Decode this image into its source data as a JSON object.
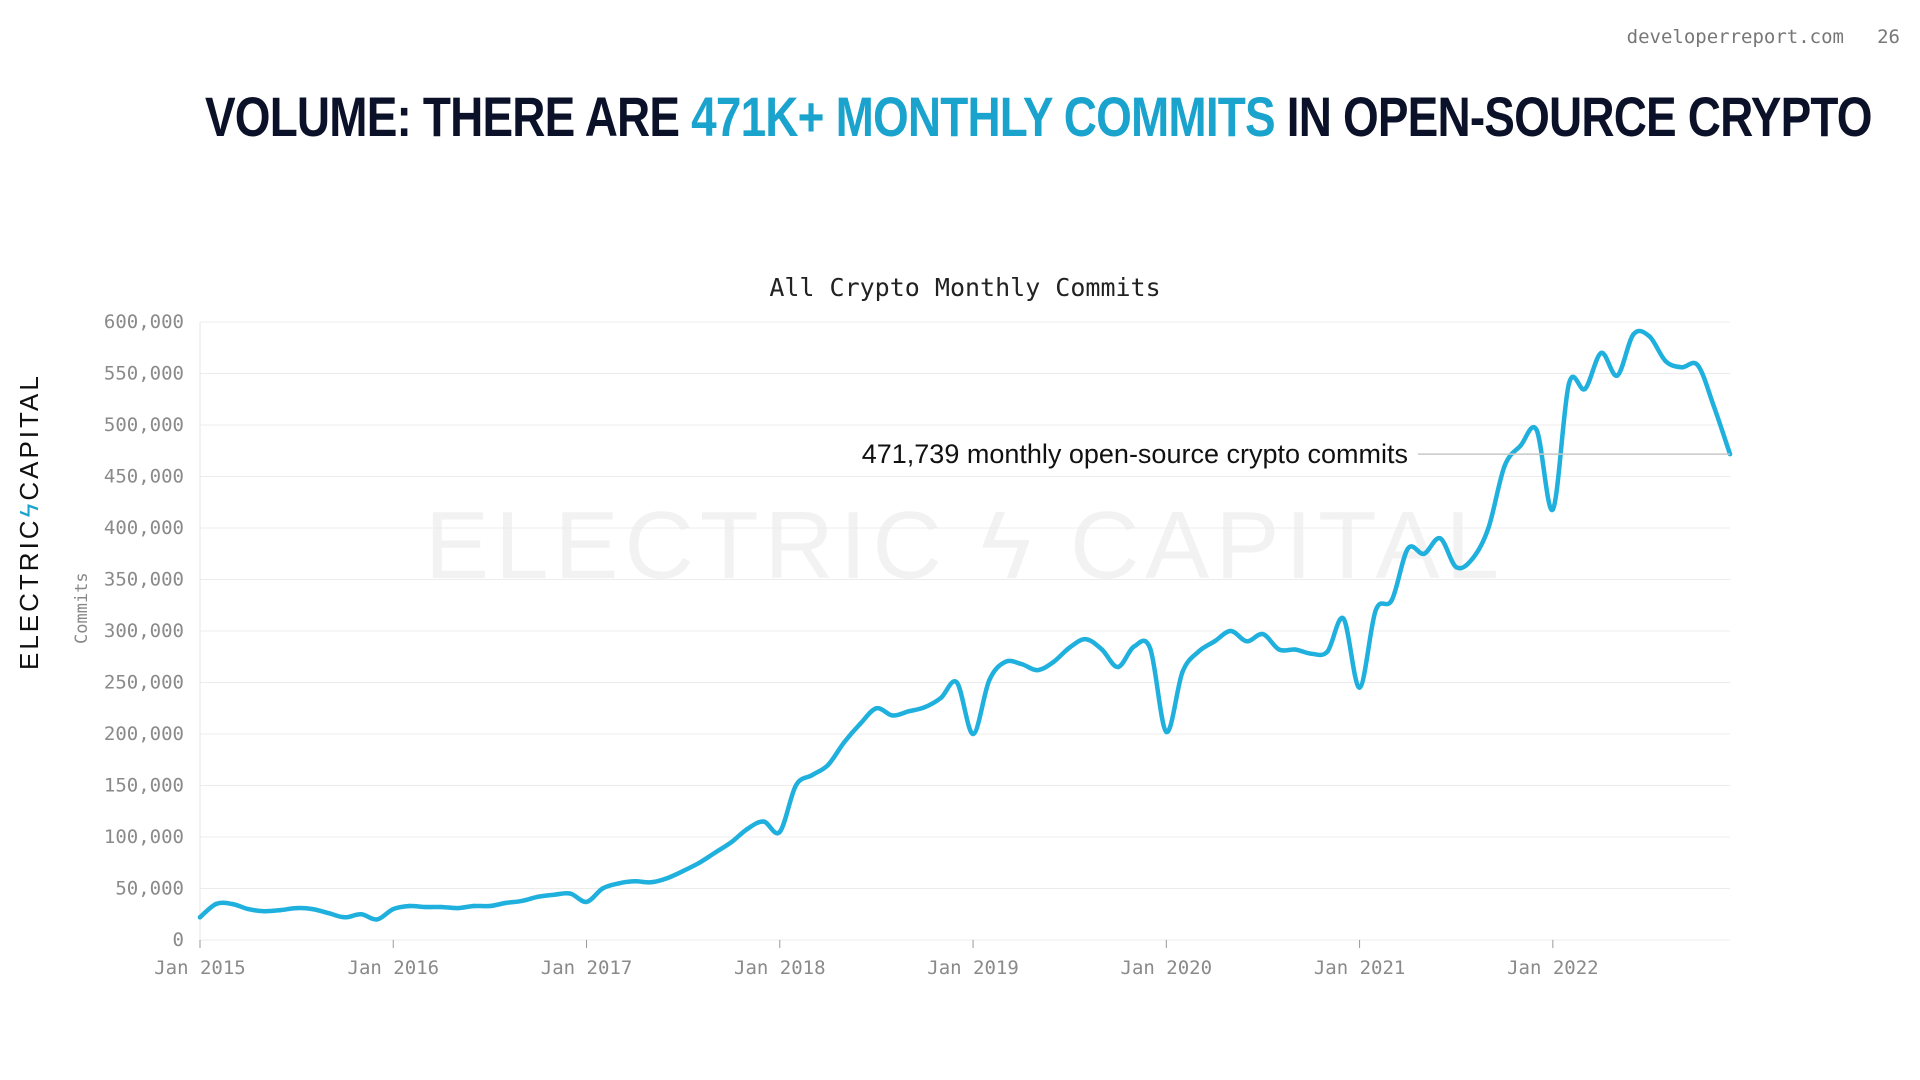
{
  "header": {
    "site": "developerreport.com",
    "page": "26",
    "title_pre": "VOLUME: THERE ARE ",
    "title_highlight": "471K+ MONTHLY COMMITS",
    "title_post": " IN OPEN-SOURCE CRYPTO"
  },
  "brand": {
    "left": "ELECTRIC",
    "bolt": "ϟ",
    "right": "CAPITAL"
  },
  "colors": {
    "accent": "#1aa3cc",
    "line": "#1fb0dd",
    "title": "#0b1128"
  },
  "chart_data": {
    "type": "line",
    "title": "All Crypto Monthly Commits",
    "ylabel": "Commits",
    "xlabel": "",
    "ylim": [
      0,
      600000
    ],
    "grid": true,
    "y_ticks": [
      {
        "value": 0,
        "label": "0"
      },
      {
        "value": 50000,
        "label": "50,000"
      },
      {
        "value": 100000,
        "label": "100,000"
      },
      {
        "value": 150000,
        "label": "150,000"
      },
      {
        "value": 200000,
        "label": "200,000"
      },
      {
        "value": 250000,
        "label": "250,000"
      },
      {
        "value": 300000,
        "label": "300,000"
      },
      {
        "value": 350000,
        "label": "350,000"
      },
      {
        "value": 400000,
        "label": "400,000"
      },
      {
        "value": 450000,
        "label": "450,000"
      },
      {
        "value": 500000,
        "label": "500,000"
      },
      {
        "value": 550000,
        "label": "550,000"
      },
      {
        "value": 600000,
        "label": "600,000"
      }
    ],
    "x_ticks": [
      "Jan 2015",
      "Jan 2016",
      "Jan 2017",
      "Jan 2018",
      "Jan 2019",
      "Jan 2020",
      "Jan 2021",
      "Jan 2022"
    ],
    "xlim": [
      "2015-01",
      "2022-12"
    ],
    "annotation": {
      "text": "471,739 monthly open-source crypto commits",
      "value": 471739
    },
    "series": [
      {
        "x": [
          "2015-01",
          "2015-02",
          "2015-03",
          "2015-04",
          "2015-05",
          "2015-06",
          "2015-07",
          "2015-08",
          "2015-09",
          "2015-10",
          "2015-11",
          "2015-12",
          "2016-01",
          "2016-02",
          "2016-03",
          "2016-04",
          "2016-05",
          "2016-06",
          "2016-07",
          "2016-08",
          "2016-09",
          "2016-10",
          "2016-11",
          "2016-12",
          "2017-01",
          "2017-02",
          "2017-03",
          "2017-04",
          "2017-05",
          "2017-06",
          "2017-07",
          "2017-08",
          "2017-09",
          "2017-10",
          "2017-11",
          "2017-12",
          "2018-01",
          "2018-02",
          "2018-03",
          "2018-04",
          "2018-05",
          "2018-06",
          "2018-07",
          "2018-08",
          "2018-09",
          "2018-10",
          "2018-11",
          "2018-12",
          "2019-01",
          "2019-02",
          "2019-03",
          "2019-04",
          "2019-05",
          "2019-06",
          "2019-07",
          "2019-08",
          "2019-09",
          "2019-10",
          "2019-11",
          "2019-12",
          "2020-01",
          "2020-02",
          "2020-03",
          "2020-04",
          "2020-05",
          "2020-06",
          "2020-07",
          "2020-08",
          "2020-09",
          "2020-10",
          "2020-11",
          "2020-12",
          "2021-01",
          "2021-02",
          "2021-03",
          "2021-04",
          "2021-05",
          "2021-06",
          "2021-07",
          "2021-08",
          "2021-09",
          "2021-10",
          "2021-11",
          "2021-12",
          "2022-01",
          "2022-02",
          "2022-03",
          "2022-04",
          "2022-05",
          "2022-06",
          "2022-07",
          "2022-08",
          "2022-09",
          "2022-10",
          "2022-11",
          "2022-12"
        ],
        "values": [
          22000,
          35000,
          35000,
          30000,
          28000,
          29000,
          31000,
          30000,
          26000,
          22000,
          25000,
          20000,
          30000,
          33000,
          32000,
          32000,
          31000,
          33000,
          33000,
          36000,
          38000,
          42000,
          44000,
          45000,
          37000,
          50000,
          55000,
          57000,
          56000,
          60000,
          67000,
          75000,
          85000,
          95000,
          108000,
          115000,
          105000,
          150000,
          160000,
          170000,
          192000,
          210000,
          225000,
          218000,
          222000,
          226000,
          235000,
          250000,
          200000,
          252000,
          270000,
          268000,
          262000,
          270000,
          284000,
          292000,
          282000,
          265000,
          285000,
          283000,
          202000,
          260000,
          280000,
          290000,
          300000,
          290000,
          297000,
          282000,
          282000,
          278000,
          280000,
          312000,
          245000,
          320000,
          330000,
          380000,
          375000,
          390000,
          362000,
          370000,
          400000,
          460000,
          480000,
          495000,
          418000,
          540000,
          535000,
          570000,
          548000,
          588000,
          586000,
          562000,
          556000,
          558000,
          518000,
          471739
        ]
      }
    ]
  }
}
